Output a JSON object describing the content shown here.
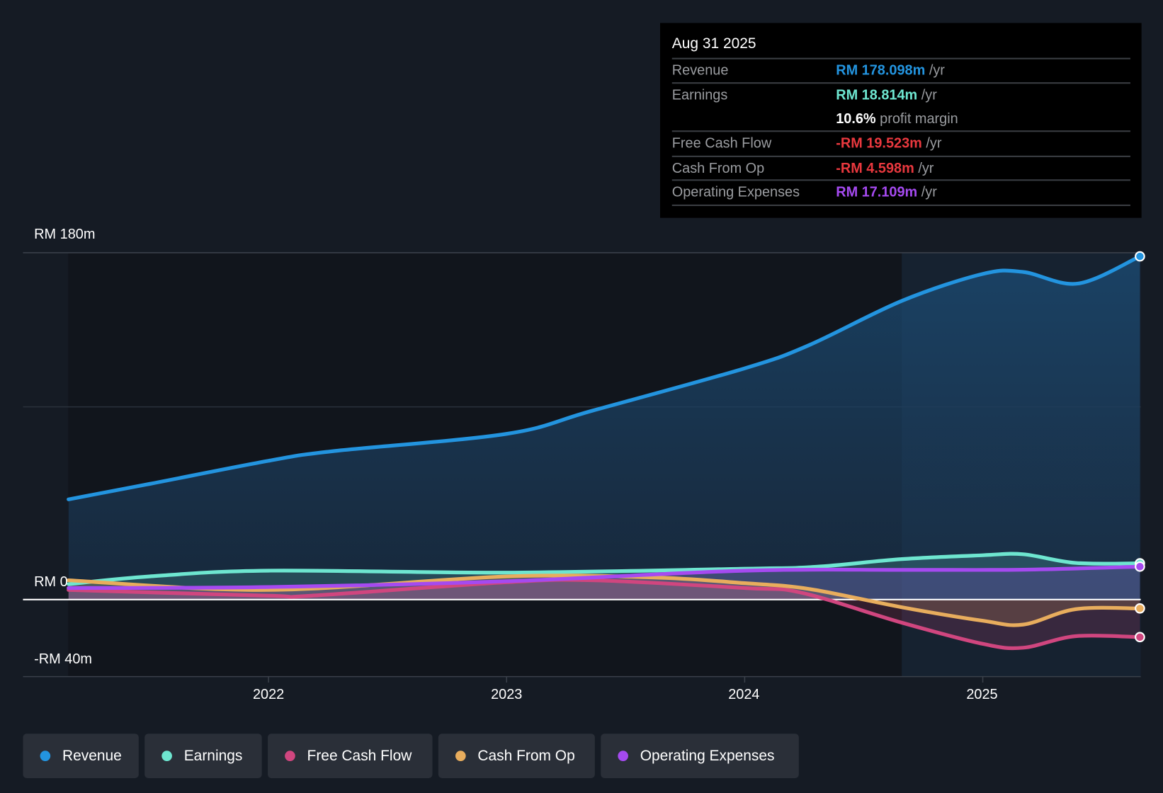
{
  "chart_data": {
    "type": "line",
    "y_axis": {
      "ticks": [
        "RM 180m",
        "RM 0",
        "-RM 40m"
      ],
      "range": [
        -40,
        180
      ],
      "unit": "RM m"
    },
    "x_axis": {
      "ticks": [
        "2022",
        "2023",
        "2024",
        "2025"
      ],
      "range": [
        2021.16,
        2025.66
      ]
    },
    "past_data_region_start": 2024.66,
    "series": [
      {
        "name": "Revenue",
        "color": "#2394df",
        "x": [
          2021.16,
          2021.5,
          2022,
          2022.27,
          2023,
          2023.36,
          2024,
          2024.27,
          2024.66,
          2025,
          2025.17,
          2025.4,
          2025.66
        ],
        "values": [
          52,
          60,
          72,
          77,
          86,
          98,
          120,
          132,
          155,
          169,
          170,
          164,
          178.1
        ]
      },
      {
        "name": "Earnings",
        "color": "#6ee6d0",
        "x": [
          2021.16,
          2021.5,
          2022,
          2023,
          2024,
          2024.3,
          2024.66,
          2025,
          2025.17,
          2025.39,
          2025.66
        ],
        "values": [
          8,
          12,
          15,
          14,
          16,
          17,
          21,
          23,
          23.5,
          19,
          18.8
        ]
      },
      {
        "name": "Free Cash Flow",
        "color": "#d0467f",
        "x": [
          2021.16,
          2022,
          2022.18,
          2023,
          2023.36,
          2024,
          2024.24,
          2024.66,
          2025,
          2025.17,
          2025.39,
          2025.66
        ],
        "values": [
          5,
          2,
          2,
          9,
          10,
          6,
          3.5,
          -12,
          -23,
          -25,
          -19,
          -19.5
        ]
      },
      {
        "name": "Cash From Op",
        "color": "#e8ad5d",
        "x": [
          2021.16,
          2022,
          2023,
          2023.61,
          2024,
          2024.27,
          2024.66,
          2025,
          2025.17,
          2025.39,
          2025.66
        ],
        "values": [
          10,
          5,
          12,
          11.5,
          8.5,
          5.5,
          -4,
          -11,
          -13,
          -5,
          -4.6
        ]
      },
      {
        "name": "Operating Expenses",
        "color": "#a54af0",
        "x": [
          2021.16,
          2022,
          2023,
          2024,
          2024.66,
          2025.17,
          2025.66
        ],
        "values": [
          6,
          6.5,
          9.5,
          15,
          15.4,
          15.5,
          17.1
        ]
      }
    ]
  },
  "tooltip": {
    "date": "Aug 31 2025",
    "rows": [
      {
        "label": "Revenue",
        "value": "RM 178.098m",
        "unit": "/yr",
        "color": "#2394df"
      },
      {
        "label": "Earnings",
        "value": "RM 18.814m",
        "unit": "/yr",
        "color": "#6ee6d0"
      },
      {
        "label": "",
        "value": "10.6%",
        "unit": "profit margin",
        "color": "#ffffff"
      },
      {
        "label": "Free Cash Flow",
        "value": "-RM 19.523m",
        "unit": "/yr",
        "color": "#e8383e"
      },
      {
        "label": "Cash From Op",
        "value": "-RM 4.598m",
        "unit": "/yr",
        "color": "#e8383e"
      },
      {
        "label": "Operating Expenses",
        "value": "RM 17.109m",
        "unit": "/yr",
        "color": "#a54af0"
      }
    ]
  },
  "legend": [
    "Revenue",
    "Earnings",
    "Free Cash Flow",
    "Cash From Op",
    "Operating Expenses"
  ]
}
